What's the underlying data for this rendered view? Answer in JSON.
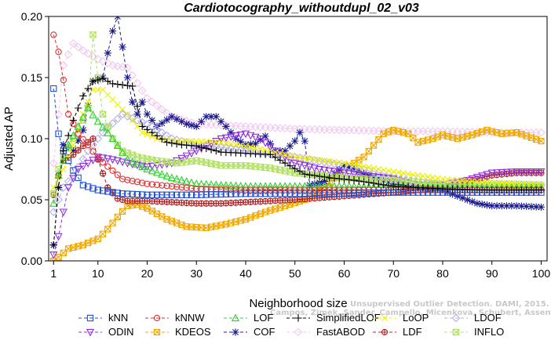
{
  "chart_data": {
    "type": "line",
    "title": "Cardiotocography_withoutdupl_02_v03",
    "xlabel": "Neighborhood size",
    "ylabel": "Adjusted AP",
    "xlim": [
      1,
      100
    ],
    "ylim": [
      0,
      0.2
    ],
    "xticks": [
      1,
      10,
      20,
      30,
      40,
      50,
      60,
      70,
      80,
      90,
      100
    ],
    "yticks": [
      0.0,
      0.05,
      0.1,
      0.15,
      0.2
    ],
    "ytick_labels": [
      "0.00",
      "0.05",
      "0.10",
      "0.15",
      "0.20"
    ],
    "grid": false,
    "legend_position": "bottom",
    "watermark": "Campos, Zimek, Sander, Campello, Micenkova, Schubert, Assent, Houle",
    "watermark_line1": "Unsupervised Outlier Detection. DAMI, 2015.",
    "series": [
      {
        "name": "kNN",
        "color": "#1f4fd0",
        "marker": "square",
        "points": [
          [
            1,
            0.141
          ],
          [
            2,
            0.104
          ],
          [
            3,
            0.09
          ],
          [
            5,
            0.074
          ],
          [
            7,
            0.062
          ],
          [
            10,
            0.058
          ],
          [
            15,
            0.055
          ],
          [
            20,
            0.054
          ],
          [
            30,
            0.054
          ],
          [
            40,
            0.055
          ],
          [
            50,
            0.055
          ],
          [
            60,
            0.055
          ],
          [
            70,
            0.056
          ],
          [
            80,
            0.056
          ],
          [
            90,
            0.056
          ],
          [
            100,
            0.056
          ]
        ]
      },
      {
        "name": "kNNW",
        "color": "#e03030",
        "marker": "circle",
        "points": [
          [
            1,
            0.185
          ],
          [
            2,
            0.171
          ],
          [
            3,
            0.148
          ],
          [
            4,
            0.12
          ],
          [
            6,
            0.104
          ],
          [
            8,
            0.095
          ],
          [
            10,
            0.084
          ],
          [
            15,
            0.067
          ],
          [
            20,
            0.063
          ],
          [
            30,
            0.059
          ],
          [
            40,
            0.058
          ],
          [
            50,
            0.058
          ],
          [
            60,
            0.058
          ],
          [
            70,
            0.058
          ],
          [
            80,
            0.058
          ],
          [
            90,
            0.058
          ],
          [
            100,
            0.058
          ]
        ]
      },
      {
        "name": "LOF",
        "color": "#30d030",
        "marker": "triangle-up",
        "points": [
          [
            1,
            0.047
          ],
          [
            2,
            0.07
          ],
          [
            4,
            0.095
          ],
          [
            6,
            0.11
          ],
          [
            8,
            0.125
          ],
          [
            10,
            0.114
          ],
          [
            13,
            0.1
          ],
          [
            16,
            0.083
          ],
          [
            20,
            0.075
          ],
          [
            25,
            0.068
          ],
          [
            30,
            0.063
          ],
          [
            40,
            0.061
          ],
          [
            50,
            0.061
          ],
          [
            60,
            0.061
          ],
          [
            70,
            0.06
          ],
          [
            80,
            0.06
          ],
          [
            90,
            0.06
          ],
          [
            100,
            0.06
          ]
        ]
      },
      {
        "name": "SimplifiedLOF",
        "color": "#000000",
        "marker": "plus",
        "points": [
          [
            1,
            0.013
          ],
          [
            2,
            0.06
          ],
          [
            3,
            0.09
          ],
          [
            5,
            0.115
          ],
          [
            7,
            0.135
          ],
          [
            9,
            0.147
          ],
          [
            11,
            0.149
          ],
          [
            13,
            0.145
          ],
          [
            15,
            0.144
          ],
          [
            17,
            0.143
          ],
          [
            19,
            0.11
          ],
          [
            21,
            0.105
          ],
          [
            24,
            0.097
          ],
          [
            27,
            0.095
          ],
          [
            30,
            0.094
          ],
          [
            35,
            0.089
          ],
          [
            40,
            0.088
          ],
          [
            45,
            0.087
          ],
          [
            48,
            0.08
          ],
          [
            52,
            0.071
          ],
          [
            57,
            0.068
          ],
          [
            62,
            0.066
          ],
          [
            70,
            0.061
          ],
          [
            80,
            0.059
          ],
          [
            90,
            0.058
          ],
          [
            100,
            0.058
          ]
        ]
      },
      {
        "name": "LoOP",
        "color": "#f0f000",
        "marker": "cross",
        "points": [
          [
            1,
            0.06
          ],
          [
            3,
            0.075
          ],
          [
            5,
            0.095
          ],
          [
            7,
            0.12
          ],
          [
            9,
            0.14
          ],
          [
            11,
            0.14
          ],
          [
            13,
            0.132
          ],
          [
            16,
            0.12
          ],
          [
            19,
            0.105
          ],
          [
            22,
            0.1
          ],
          [
            26,
            0.098
          ],
          [
            30,
            0.098
          ],
          [
            35,
            0.097
          ],
          [
            40,
            0.094
          ],
          [
            45,
            0.09
          ],
          [
            50,
            0.085
          ],
          [
            60,
            0.08
          ],
          [
            70,
            0.073
          ],
          [
            80,
            0.067
          ],
          [
            90,
            0.064
          ],
          [
            100,
            0.063
          ]
        ]
      },
      {
        "name": "LDOF",
        "color": "#b0b0e8",
        "marker": "diamond",
        "points": [
          [
            1,
            0.04
          ],
          [
            3,
            0.06
          ],
          [
            5,
            0.07
          ],
          [
            8,
            0.09
          ],
          [
            11,
            0.105
          ],
          [
            15,
            0.12
          ],
          [
            18,
            0.115
          ],
          [
            21,
            0.11
          ],
          [
            25,
            0.1
          ],
          [
            30,
            0.095
          ],
          [
            35,
            0.093
          ],
          [
            40,
            0.09
          ],
          [
            50,
            0.085
          ],
          [
            60,
            0.078
          ],
          [
            70,
            0.07
          ],
          [
            80,
            0.064
          ],
          [
            90,
            0.063
          ],
          [
            100,
            0.062
          ]
        ]
      },
      {
        "name": "ODIN",
        "color": "#9030e0",
        "marker": "triangle-down",
        "points": [
          [
            1,
            0.005
          ],
          [
            2,
            0.02
          ],
          [
            4,
            0.06
          ],
          [
            6,
            0.075
          ],
          [
            8,
            0.08
          ],
          [
            10,
            0.085
          ],
          [
            13,
            0.083
          ],
          [
            16,
            0.08
          ],
          [
            20,
            0.077
          ],
          [
            25,
            0.08
          ],
          [
            30,
            0.09
          ],
          [
            35,
            0.1
          ],
          [
            40,
            0.104
          ],
          [
            43,
            0.1
          ],
          [
            46,
            0.09
          ],
          [
            50,
            0.08
          ],
          [
            55,
            0.075
          ],
          [
            60,
            0.072
          ],
          [
            70,
            0.067
          ],
          [
            75,
            0.062
          ],
          [
            80,
            0.062
          ],
          [
            85,
            0.066
          ],
          [
            90,
            0.072
          ],
          [
            95,
            0.073
          ],
          [
            100,
            0.073
          ]
        ]
      },
      {
        "name": "KDEOS",
        "color": "#f0a800",
        "marker": "square-x",
        "points": [
          [
            1,
            0.0
          ],
          [
            2,
            0.003
          ],
          [
            4,
            0.01
          ],
          [
            7,
            0.013
          ],
          [
            10,
            0.018
          ],
          [
            12,
            0.026
          ],
          [
            14,
            0.036
          ],
          [
            16,
            0.045
          ],
          [
            18,
            0.046
          ],
          [
            20,
            0.043
          ],
          [
            24,
            0.034
          ],
          [
            28,
            0.028
          ],
          [
            32,
            0.027
          ],
          [
            36,
            0.03
          ],
          [
            40,
            0.034
          ],
          [
            44,
            0.04
          ],
          [
            48,
            0.045
          ],
          [
            52,
            0.05
          ],
          [
            55,
            0.057
          ],
          [
            60,
            0.075
          ],
          [
            64,
            0.085
          ],
          [
            68,
            0.104
          ],
          [
            70,
            0.107
          ],
          [
            73,
            0.104
          ],
          [
            75,
            0.097
          ],
          [
            78,
            0.1
          ],
          [
            80,
            0.103
          ],
          [
            83,
            0.1
          ],
          [
            86,
            0.103
          ],
          [
            89,
            0.107
          ],
          [
            92,
            0.104
          ],
          [
            95,
            0.105
          ],
          [
            100,
            0.098
          ]
        ]
      },
      {
        "name": "COF",
        "color": "#1a1a90",
        "marker": "star",
        "points": [
          [
            1,
            0.013
          ],
          [
            2,
            0.06
          ],
          [
            3,
            0.095
          ],
          [
            5,
            0.09
          ],
          [
            7,
            0.107
          ],
          [
            9,
            0.147
          ],
          [
            11,
            0.15
          ],
          [
            12,
            0.17
          ],
          [
            13,
            0.188
          ],
          [
            14,
            0.2
          ],
          [
            15,
            0.175
          ],
          [
            16,
            0.15
          ],
          [
            17,
            0.13
          ],
          [
            18,
            0.12
          ],
          [
            19,
            0.13
          ],
          [
            20,
            0.12
          ],
          [
            22,
            0.11
          ],
          [
            25,
            0.118
          ],
          [
            28,
            0.112
          ],
          [
            30,
            0.11
          ],
          [
            32,
            0.118
          ],
          [
            34,
            0.118
          ],
          [
            36,
            0.11
          ],
          [
            38,
            0.1
          ],
          [
            40,
            0.095
          ],
          [
            42,
            0.096
          ],
          [
            44,
            0.102
          ],
          [
            46,
            0.09
          ],
          [
            48,
            0.09
          ],
          [
            50,
            0.098
          ],
          [
            51,
            0.105
          ],
          [
            52,
            0.098
          ],
          [
            53,
            0.062
          ],
          [
            56,
            0.065
          ],
          [
            60,
            0.078
          ],
          [
            65,
            0.07
          ],
          [
            70,
            0.063
          ],
          [
            75,
            0.06
          ],
          [
            80,
            0.058
          ],
          [
            83,
            0.053
          ],
          [
            85,
            0.05
          ],
          [
            87,
            0.047
          ],
          [
            90,
            0.045
          ],
          [
            95,
            0.045
          ],
          [
            100,
            0.044
          ]
        ]
      },
      {
        "name": "FastABOD",
        "color": "#f0c8f0",
        "marker": "diamond",
        "points": [
          [
            1,
            0.08
          ],
          [
            3,
            0.16
          ],
          [
            5,
            0.178
          ],
          [
            7,
            0.172
          ],
          [
            10,
            0.165
          ],
          [
            13,
            0.16
          ],
          [
            16,
            0.158
          ],
          [
            20,
            0.133
          ],
          [
            25,
            0.118
          ],
          [
            30,
            0.112
          ],
          [
            40,
            0.11
          ],
          [
            50,
            0.108
          ],
          [
            60,
            0.107
          ],
          [
            70,
            0.106
          ],
          [
            80,
            0.106
          ],
          [
            90,
            0.105
          ],
          [
            100,
            0.105
          ]
        ]
      },
      {
        "name": "LDF",
        "color": "#b02020",
        "marker": "circle-plus",
        "points": [
          [
            1,
            0.054
          ],
          [
            2,
            0.07
          ],
          [
            3,
            0.082
          ],
          [
            5,
            0.087
          ],
          [
            7,
            0.094
          ],
          [
            9,
            0.1
          ],
          [
            10,
            0.083
          ],
          [
            12,
            0.06
          ],
          [
            14,
            0.051
          ],
          [
            16,
            0.049
          ],
          [
            20,
            0.049
          ],
          [
            25,
            0.048
          ],
          [
            30,
            0.047
          ],
          [
            35,
            0.047
          ],
          [
            40,
            0.048
          ],
          [
            50,
            0.05
          ],
          [
            60,
            0.053
          ],
          [
            70,
            0.056
          ],
          [
            80,
            0.06
          ],
          [
            90,
            0.07
          ],
          [
            95,
            0.072
          ],
          [
            100,
            0.072
          ]
        ]
      },
      {
        "name": "INFLO",
        "color": "#b0e060",
        "marker": "hourglass",
        "points": [
          [
            1,
            0.055
          ],
          [
            2,
            0.075
          ],
          [
            3,
            0.085
          ],
          [
            5,
            0.1
          ],
          [
            7,
            0.115
          ],
          [
            8,
            0.125
          ],
          [
            9,
            0.185
          ],
          [
            10,
            0.15
          ],
          [
            11,
            0.12
          ],
          [
            13,
            0.1
          ],
          [
            15,
            0.09
          ],
          [
            18,
            0.085
          ],
          [
            22,
            0.082
          ],
          [
            26,
            0.08
          ],
          [
            30,
            0.082
          ],
          [
            35,
            0.078
          ],
          [
            40,
            0.078
          ],
          [
            45,
            0.076
          ],
          [
            50,
            0.072
          ],
          [
            55,
            0.07
          ],
          [
            60,
            0.068
          ],
          [
            70,
            0.066
          ],
          [
            80,
            0.063
          ],
          [
            90,
            0.062
          ],
          [
            100,
            0.061
          ]
        ]
      }
    ]
  }
}
